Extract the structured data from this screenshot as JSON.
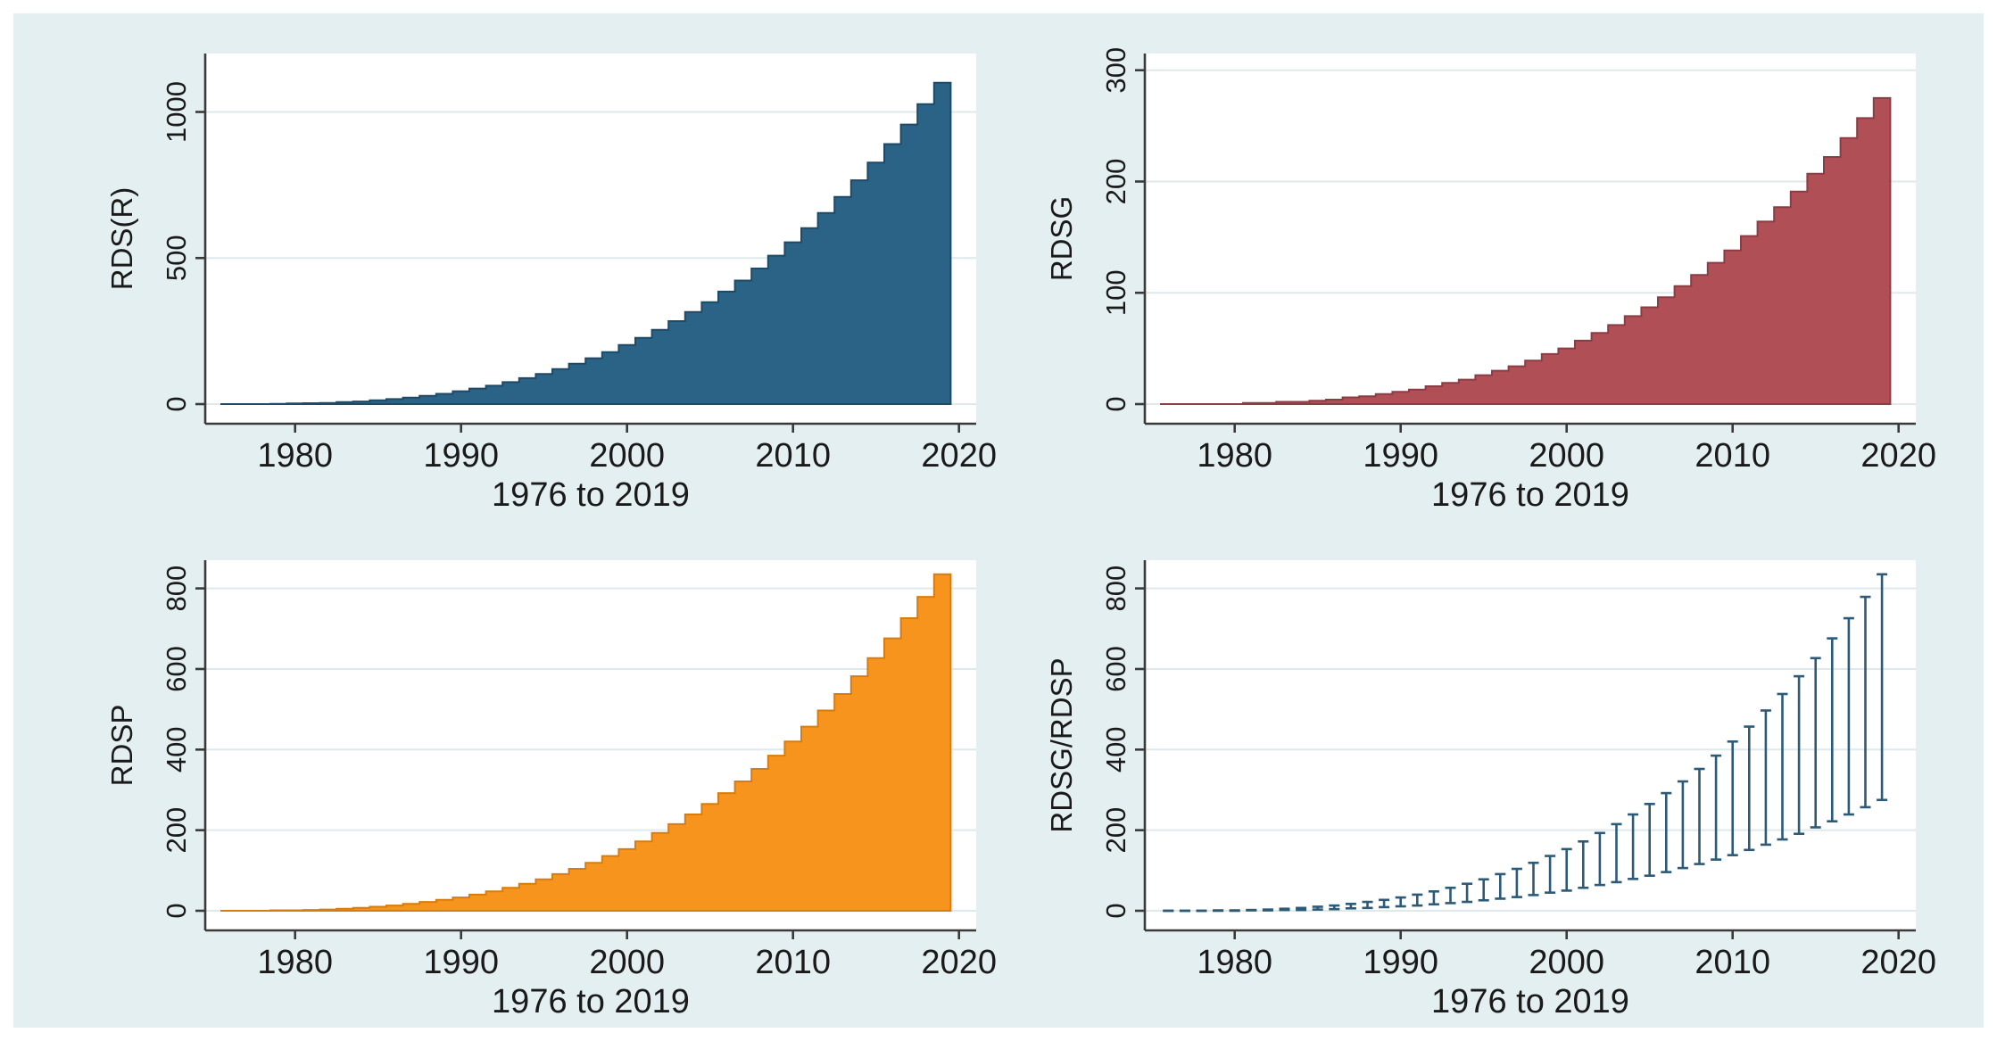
{
  "figure": {
    "background": "#ffffff",
    "canvas_background": "#e4eff1",
    "plot_background": "#ffffff",
    "grid_color": "#dfe9eb",
    "axis_color": "#3a3a3a",
    "text_color": "#1a1a1a"
  },
  "chart_data": [
    {
      "name": "rds-r",
      "type": "area",
      "title": "",
      "xlabel": "1976 to 2019",
      "ylabel": "RDS(R)",
      "x": [
        1976,
        1977,
        1978,
        1979,
        1980,
        1981,
        1982,
        1983,
        1984,
        1985,
        1986,
        1987,
        1988,
        1989,
        1990,
        1991,
        1992,
        1993,
        1994,
        1995,
        1996,
        1997,
        1998,
        1999,
        2000,
        2001,
        2002,
        2003,
        2004,
        2005,
        2006,
        2007,
        2008,
        2009,
        2010,
        2011,
        2012,
        2013,
        2014,
        2015,
        2016,
        2017,
        2018,
        2019
      ],
      "values": [
        0,
        0,
        0,
        1,
        2,
        3,
        4,
        7,
        9,
        13,
        17,
        22,
        28,
        35,
        44,
        53,
        63,
        75,
        89,
        103,
        120,
        138,
        157,
        178,
        202,
        227,
        254,
        284,
        315,
        349,
        385,
        423,
        464,
        508,
        554,
        602,
        654,
        709,
        766,
        827,
        890,
        957,
        1027,
        1100
      ],
      "xticks": [
        1980,
        1990,
        2000,
        2010,
        2020
      ],
      "yticks": [
        0,
        500,
        1000
      ],
      "xlim": [
        1975.5,
        2020.5
      ],
      "ylim": [
        0,
        1200
      ],
      "grid": true,
      "legend": "none",
      "fill_color": "#2b6386",
      "line_color": "#1d4a67"
    },
    {
      "name": "rdsg",
      "type": "area",
      "title": "",
      "xlabel": "1976 to 2019",
      "ylabel": "RDSG",
      "x": [
        1976,
        1977,
        1978,
        1979,
        1980,
        1981,
        1982,
        1983,
        1984,
        1985,
        1986,
        1987,
        1988,
        1989,
        1990,
        1991,
        1992,
        1993,
        1994,
        1995,
        1996,
        1997,
        1998,
        1999,
        2000,
        2001,
        2002,
        2003,
        2004,
        2005,
        2006,
        2007,
        2008,
        2009,
        2010,
        2011,
        2012,
        2013,
        2014,
        2015,
        2016,
        2017,
        2018,
        2019
      ],
      "values": [
        0,
        0,
        0,
        0,
        0,
        1,
        1,
        2,
        2,
        3,
        4,
        6,
        7,
        9,
        11,
        13,
        16,
        19,
        22,
        26,
        30,
        34,
        39,
        45,
        50,
        57,
        64,
        71,
        79,
        87,
        96,
        106,
        116,
        127,
        138,
        151,
        164,
        177,
        191,
        207,
        222,
        239,
        257,
        275
      ],
      "xticks": [
        1980,
        1990,
        2000,
        2010,
        2020
      ],
      "yticks": [
        0,
        100,
        200,
        300
      ],
      "xlim": [
        1975.5,
        2020.5
      ],
      "ylim": [
        0,
        315
      ],
      "grid": true,
      "legend": "none",
      "fill_color": "#b05056",
      "line_color": "#8c3c44"
    },
    {
      "name": "rdsp",
      "type": "area",
      "title": "",
      "xlabel": "1976 to 2019",
      "ylabel": "RDSP",
      "x": [
        1976,
        1977,
        1978,
        1979,
        1980,
        1981,
        1982,
        1983,
        1984,
        1985,
        1986,
        1987,
        1988,
        1989,
        1990,
        1991,
        1992,
        1993,
        1994,
        1995,
        1996,
        1997,
        1998,
        1999,
        2000,
        2001,
        2002,
        2003,
        2004,
        2005,
        2006,
        2007,
        2008,
        2009,
        2010,
        2011,
        2012,
        2013,
        2014,
        2015,
        2016,
        2017,
        2018,
        2019
      ],
      "values": [
        0,
        0,
        0,
        1,
        1,
        2,
        3,
        5,
        7,
        10,
        13,
        17,
        22,
        27,
        33,
        40,
        48,
        57,
        67,
        78,
        91,
        104,
        119,
        136,
        153,
        172,
        193,
        215,
        239,
        265,
        292,
        321,
        352,
        385,
        420,
        457,
        497,
        538,
        582,
        627,
        676,
        726,
        779,
        835
      ],
      "xticks": [
        1980,
        1990,
        2000,
        2010,
        2020
      ],
      "yticks": [
        0,
        200,
        400,
        600,
        800
      ],
      "xlim": [
        1975.5,
        2020.5
      ],
      "ylim": [
        0,
        870
      ],
      "grid": true,
      "legend": "none",
      "fill_color": "#f7941e",
      "line_color": "#d97c0e"
    },
    {
      "name": "rdsg-rdsp-range",
      "type": "rangebar",
      "title": "",
      "xlabel": "1976 to 2019",
      "ylabel": "RDSG/RDSP",
      "x": [
        1976,
        1977,
        1978,
        1979,
        1980,
        1981,
        1982,
        1983,
        1984,
        1985,
        1986,
        1987,
        1988,
        1989,
        1990,
        1991,
        1992,
        1993,
        1994,
        1995,
        1996,
        1997,
        1998,
        1999,
        2000,
        2001,
        2002,
        2003,
        2004,
        2005,
        2006,
        2007,
        2008,
        2009,
        2010,
        2011,
        2012,
        2013,
        2014,
        2015,
        2016,
        2017,
        2018,
        2019
      ],
      "low": [
        0,
        0,
        0,
        0,
        0,
        1,
        1,
        2,
        2,
        3,
        4,
        6,
        7,
        9,
        11,
        13,
        16,
        19,
        22,
        26,
        30,
        34,
        39,
        45,
        50,
        57,
        64,
        71,
        79,
        87,
        96,
        106,
        116,
        127,
        138,
        151,
        164,
        177,
        191,
        207,
        222,
        239,
        257,
        275
      ],
      "high": [
        0,
        0,
        0,
        1,
        1,
        2,
        3,
        5,
        7,
        10,
        13,
        17,
        22,
        27,
        33,
        40,
        48,
        57,
        67,
        78,
        91,
        104,
        119,
        136,
        153,
        172,
        193,
        215,
        239,
        265,
        292,
        321,
        352,
        385,
        420,
        457,
        497,
        538,
        582,
        627,
        676,
        726,
        779,
        835
      ],
      "xticks": [
        1980,
        1990,
        2000,
        2010,
        2020
      ],
      "yticks": [
        0,
        200,
        400,
        600,
        800
      ],
      "xlim": [
        1975.5,
        2020.5
      ],
      "ylim": [
        0,
        870
      ],
      "grid": true,
      "legend": "none",
      "bar_color": "#2c5a77"
    }
  ]
}
